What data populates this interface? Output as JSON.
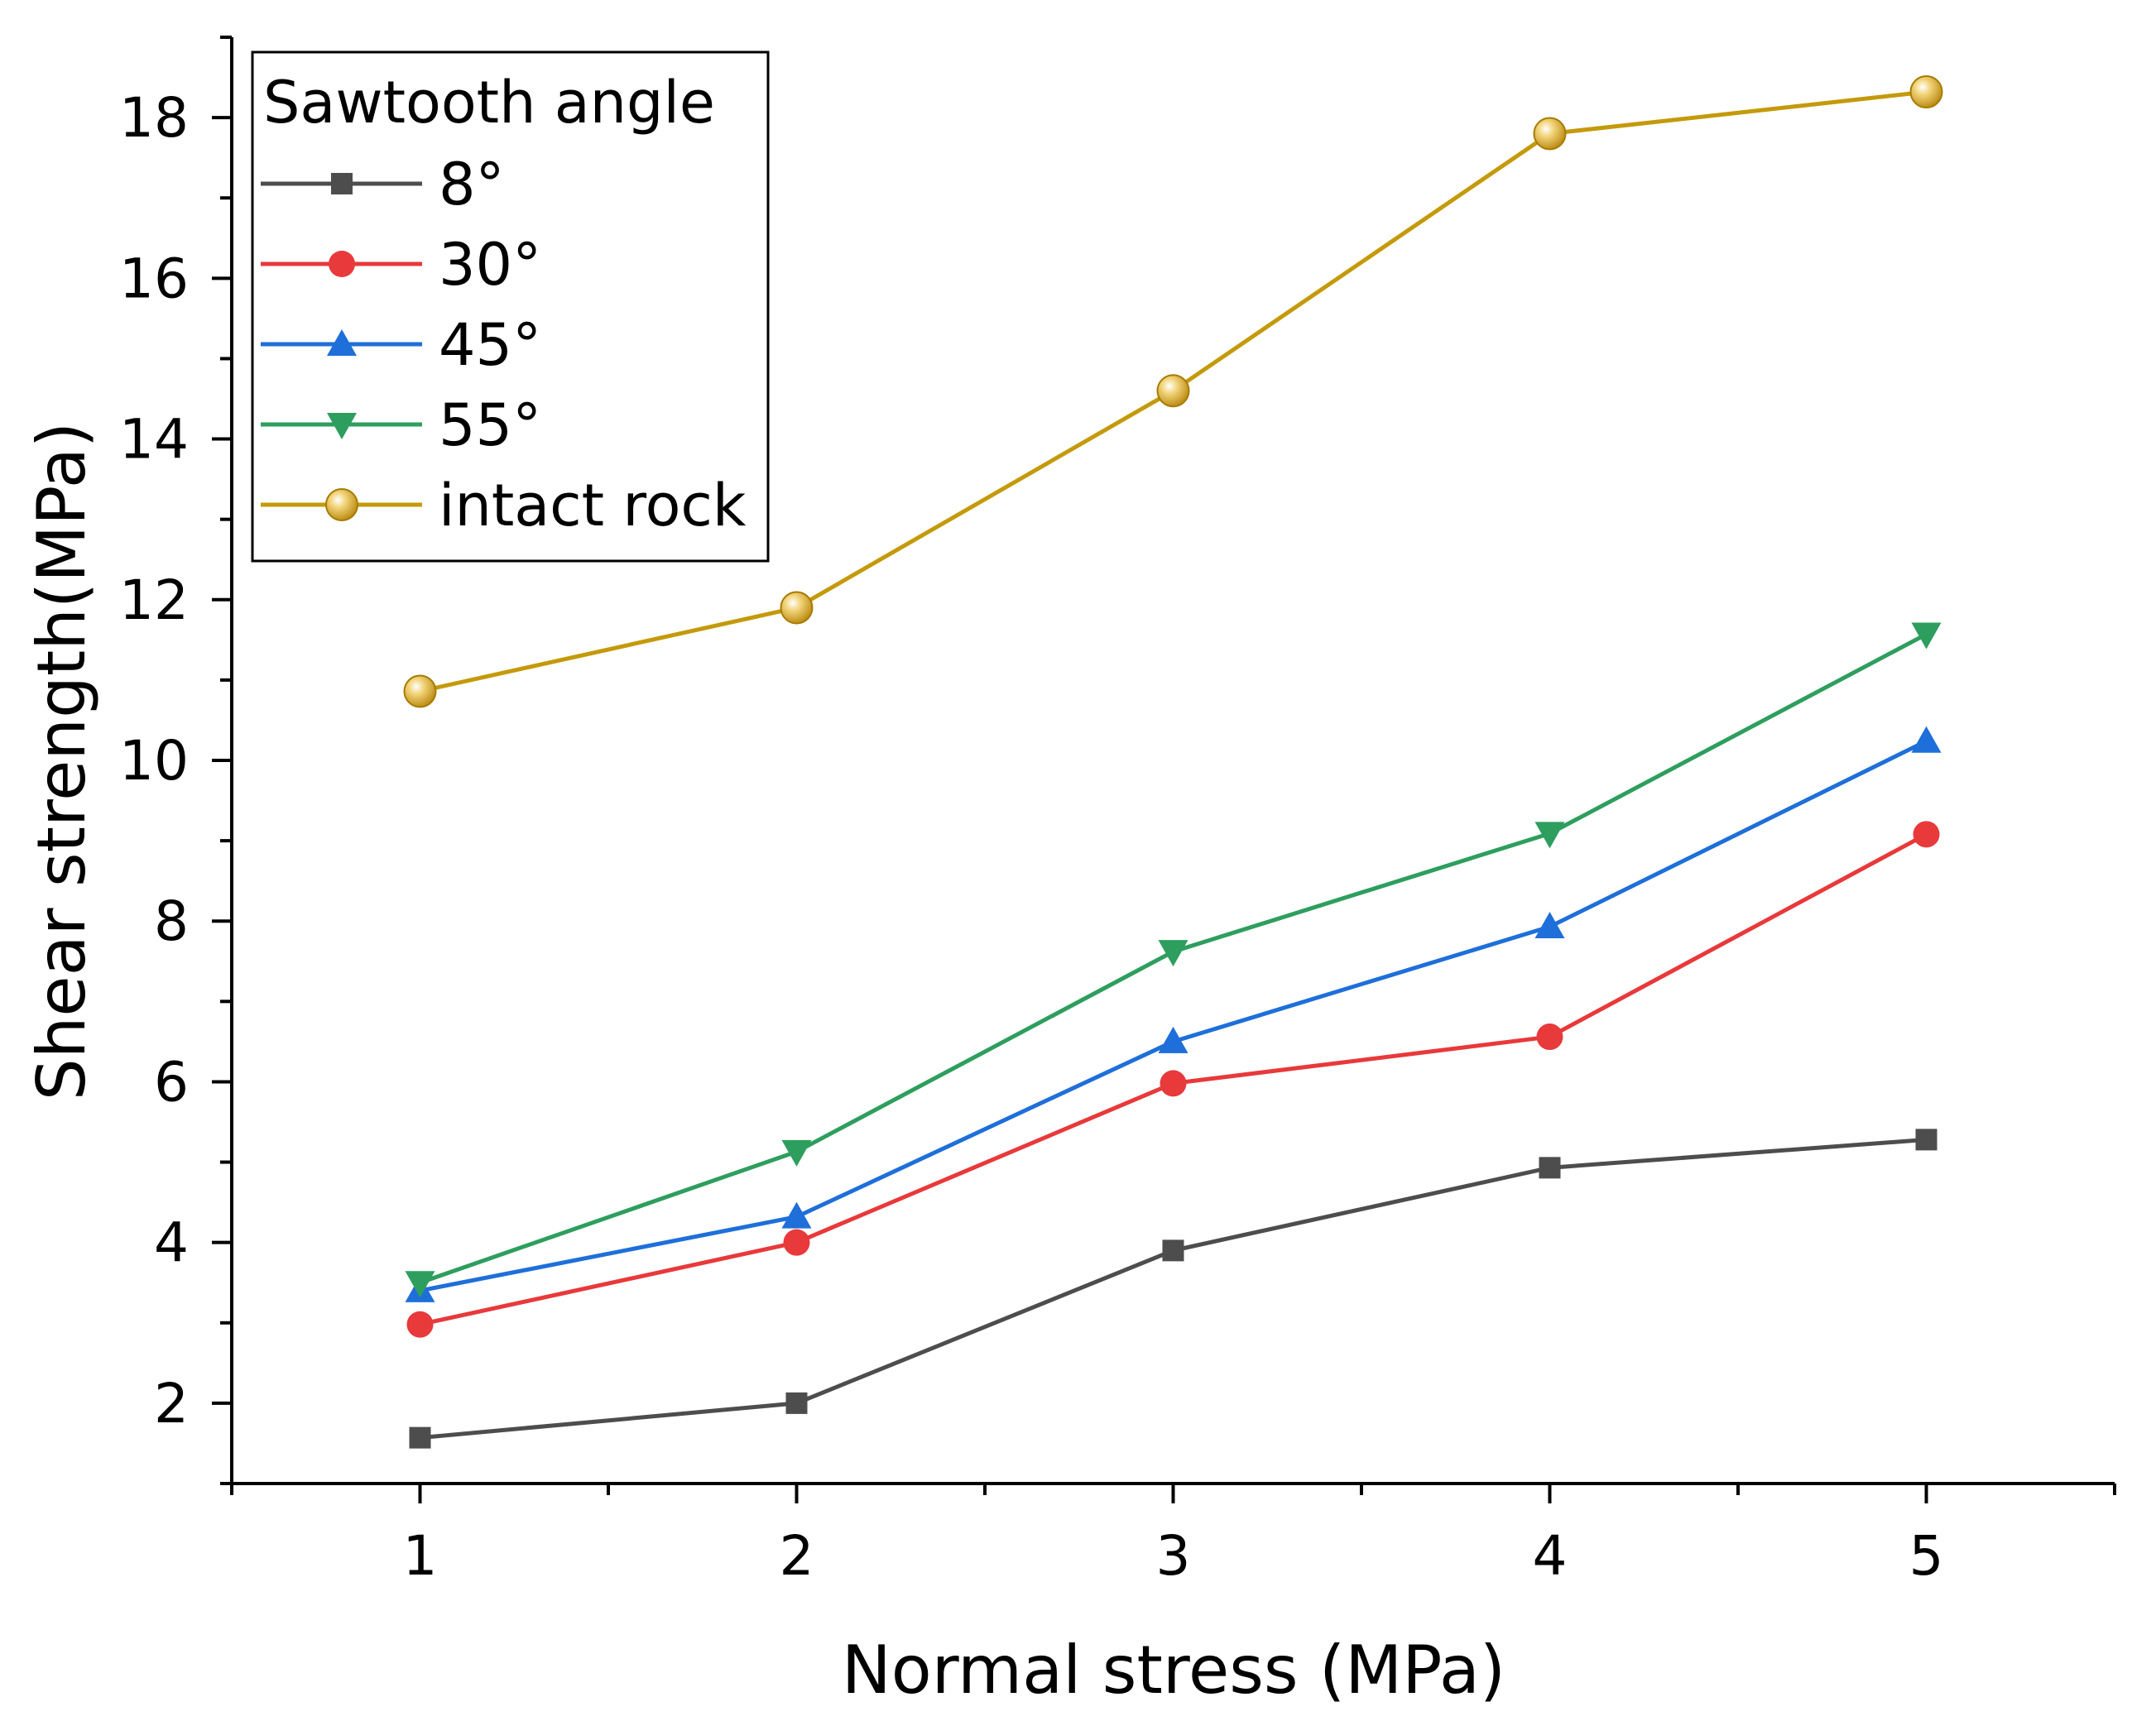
{
  "chart_data": {
    "type": "line",
    "title": "",
    "xlabel": "Normal stress (MPa)",
    "ylabel": "Shear strength(MPa)",
    "xlim": [
      0.5,
      5.5
    ],
    "ylim": [
      1.0,
      19.0
    ],
    "x_ticks": [
      1,
      2,
      3,
      4,
      5
    ],
    "x_tick_labels": [
      "1",
      "2",
      "3",
      "4",
      "5"
    ],
    "y_ticks": [
      2,
      4,
      6,
      8,
      10,
      12,
      14,
      16,
      18
    ],
    "y_tick_labels": [
      "2",
      "4",
      "6",
      "8",
      "10",
      "12",
      "14",
      "16",
      "18"
    ],
    "grid": false,
    "legend": {
      "title": "Sawtooth angle",
      "position": "top-left"
    },
    "x": [
      1,
      2,
      3,
      4,
      5
    ],
    "series": [
      {
        "name": "8°",
        "color": "#4d4d4d",
        "marker": "square",
        "values": [
          1.57,
          2.0,
          3.9,
          4.93,
          5.28
        ]
      },
      {
        "name": "30°",
        "color": "#e8393b",
        "marker": "circle",
        "values": [
          2.98,
          4.0,
          5.98,
          6.56,
          9.08
        ]
      },
      {
        "name": "45°",
        "color": "#1e6fd9",
        "marker": "triangle-up",
        "values": [
          3.4,
          4.32,
          6.5,
          7.93,
          10.24
        ]
      },
      {
        "name": "55°",
        "color": "#2e9e5e",
        "marker": "triangle-down",
        "values": [
          3.5,
          5.13,
          7.62,
          9.09,
          11.57
        ]
      },
      {
        "name": "intact rock",
        "color": "#c49a0a",
        "marker": "sphere",
        "values": [
          10.86,
          11.9,
          14.6,
          17.8,
          18.32
        ]
      }
    ]
  }
}
